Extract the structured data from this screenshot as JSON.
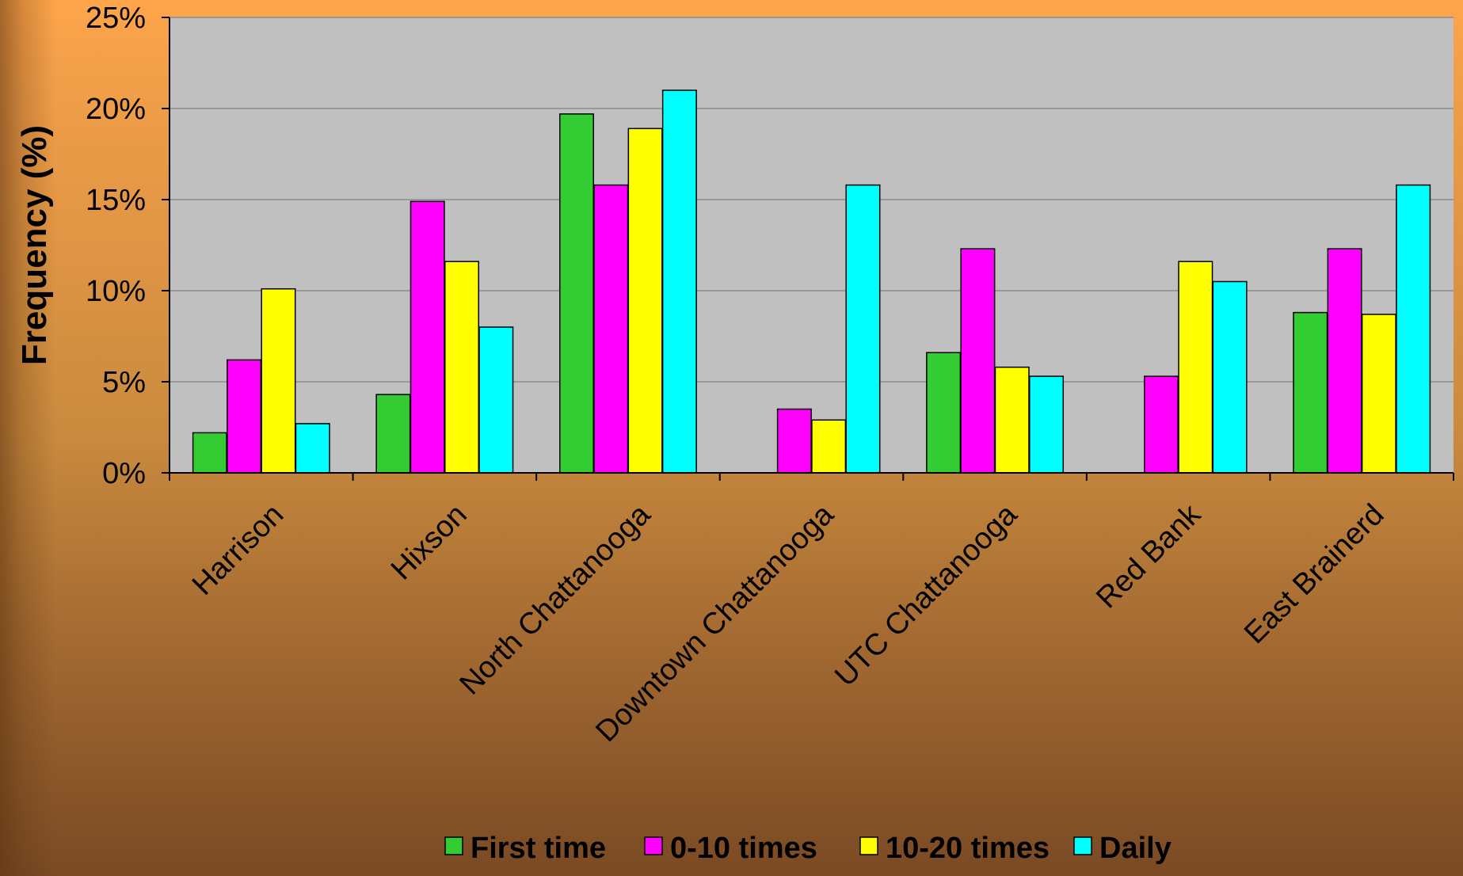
{
  "chart_data": {
    "type": "bar",
    "title": "",
    "xlabel": "",
    "ylabel": "Frequency (%)",
    "ylim": [
      0,
      25
    ],
    "yticks": [
      "0%",
      "5%",
      "10%",
      "15%",
      "20%",
      "25%"
    ],
    "grid": true,
    "legend_position": "bottom",
    "plot_background": "#c0c0c0",
    "categories": [
      "Harrison",
      "Hixson",
      "North Chattanooga",
      "Downtown Chattanooga",
      "UTC Chattanooga",
      "Red Bank",
      "East Brainerd"
    ],
    "series": [
      {
        "name": "First time",
        "color": "#33cc33",
        "values": [
          2.2,
          4.3,
          19.7,
          0,
          6.6,
          0,
          8.8
        ]
      },
      {
        "name": "0-10 times",
        "color": "#ff00ff",
        "values": [
          6.2,
          14.9,
          15.8,
          3.5,
          12.3,
          5.3,
          12.3
        ]
      },
      {
        "name": "10-20 times",
        "color": "#ffff00",
        "values": [
          10.1,
          11.6,
          18.9,
          2.9,
          5.8,
          11.6,
          8.7
        ]
      },
      {
        "name": "Daily",
        "color": "#00ffff",
        "values": [
          2.7,
          8.0,
          21.0,
          15.8,
          5.3,
          10.5,
          15.8
        ]
      }
    ]
  }
}
